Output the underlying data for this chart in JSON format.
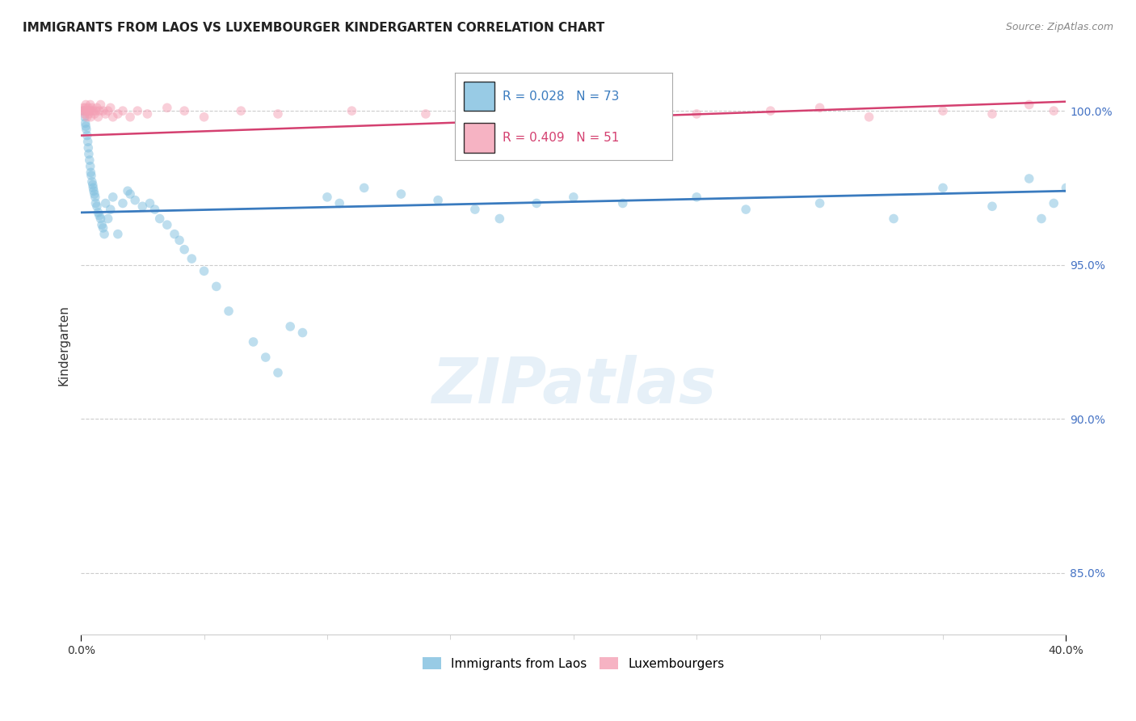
{
  "title": "IMMIGRANTS FROM LAOS VS LUXEMBOURGER KINDERGARTEN CORRELATION CHART",
  "source": "Source: ZipAtlas.com",
  "ylabel": "Kindergarten",
  "xlim": [
    0.0,
    40.0
  ],
  "ylim": [
    83.0,
    101.8
  ],
  "legend_blue_label": "Immigrants from Laos",
  "legend_pink_label": "Luxembourgers",
  "R_blue": 0.028,
  "N_blue": 73,
  "R_pink": 0.409,
  "N_pink": 51,
  "blue_color": "#7fbfdf",
  "pink_color": "#f4a0b5",
  "blue_line_color": "#3a7bbf",
  "pink_line_color": "#d44070",
  "scatter_alpha": 0.5,
  "marker_size": 70,
  "blue_scatter_x": [
    0.1,
    0.15,
    0.18,
    0.2,
    0.22,
    0.25,
    0.28,
    0.3,
    0.32,
    0.35,
    0.38,
    0.4,
    0.42,
    0.45,
    0.48,
    0.5,
    0.52,
    0.55,
    0.58,
    0.6,
    0.65,
    0.7,
    0.75,
    0.8,
    0.85,
    0.9,
    0.95,
    1.0,
    1.1,
    1.2,
    1.3,
    1.5,
    1.7,
    1.9,
    2.0,
    2.2,
    2.5,
    2.8,
    3.0,
    3.2,
    3.5,
    3.8,
    4.0,
    4.2,
    4.5,
    5.0,
    5.5,
    6.0,
    7.0,
    7.5,
    8.0,
    8.5,
    9.0,
    10.0,
    10.5,
    11.5,
    13.0,
    14.5,
    16.0,
    17.0,
    18.5,
    20.0,
    22.0,
    25.0,
    27.0,
    30.0,
    33.0,
    35.0,
    37.0,
    38.5,
    39.0,
    39.5,
    40.0
  ],
  "blue_scatter_y": [
    100.0,
    99.8,
    99.6,
    99.5,
    99.4,
    99.2,
    99.0,
    98.8,
    98.6,
    98.4,
    98.2,
    98.0,
    97.9,
    97.7,
    97.6,
    97.5,
    97.4,
    97.3,
    97.2,
    97.0,
    96.9,
    96.7,
    96.6,
    96.5,
    96.3,
    96.2,
    96.0,
    97.0,
    96.5,
    96.8,
    97.2,
    96.0,
    97.0,
    97.4,
    97.3,
    97.1,
    96.9,
    97.0,
    96.8,
    96.5,
    96.3,
    96.0,
    95.8,
    95.5,
    95.2,
    94.8,
    94.3,
    93.5,
    92.5,
    92.0,
    91.5,
    93.0,
    92.8,
    97.2,
    97.0,
    97.5,
    97.3,
    97.1,
    96.8,
    96.5,
    97.0,
    97.2,
    97.0,
    97.2,
    96.8,
    97.0,
    96.5,
    97.5,
    96.9,
    97.8,
    96.5,
    97.0,
    97.5
  ],
  "pink_scatter_x": [
    0.05,
    0.1,
    0.12,
    0.15,
    0.18,
    0.2,
    0.22,
    0.25,
    0.28,
    0.3,
    0.32,
    0.35,
    0.38,
    0.4,
    0.42,
    0.45,
    0.5,
    0.55,
    0.6,
    0.65,
    0.7,
    0.75,
    0.8,
    0.9,
    1.0,
    1.1,
    1.2,
    1.3,
    1.5,
    1.7,
    2.0,
    2.3,
    2.7,
    3.5,
    4.2,
    5.0,
    6.5,
    8.0,
    11.0,
    14.0,
    17.0,
    20.0,
    22.0,
    25.0,
    28.0,
    30.0,
    32.0,
    35.0,
    37.0,
    38.5,
    39.5
  ],
  "pink_scatter_y": [
    100.0,
    100.1,
    100.0,
    99.9,
    100.1,
    100.2,
    100.0,
    99.8,
    100.0,
    100.1,
    99.9,
    100.0,
    100.2,
    99.8,
    100.0,
    100.1,
    100.0,
    99.9,
    100.0,
    100.1,
    99.8,
    100.0,
    100.2,
    100.0,
    99.9,
    100.0,
    100.1,
    99.8,
    99.9,
    100.0,
    99.8,
    100.0,
    99.9,
    100.1,
    100.0,
    99.8,
    100.0,
    99.9,
    100.0,
    99.9,
    100.1,
    99.8,
    100.0,
    99.9,
    100.0,
    100.1,
    99.8,
    100.0,
    99.9,
    100.2,
    100.0
  ],
  "blue_trend_x": [
    0.0,
    40.0
  ],
  "blue_trend_y": [
    96.7,
    97.4
  ],
  "pink_trend_x": [
    0.0,
    40.0
  ],
  "pink_trend_y": [
    99.2,
    100.3
  ],
  "ytick_positions": [
    85.0,
    90.0,
    95.0,
    100.0
  ],
  "grid_color": "#cccccc",
  "background_color": "#ffffff",
  "watermark_text": "ZIPatlas",
  "watermark_color": "#c8dff0",
  "watermark_alpha": 0.45
}
